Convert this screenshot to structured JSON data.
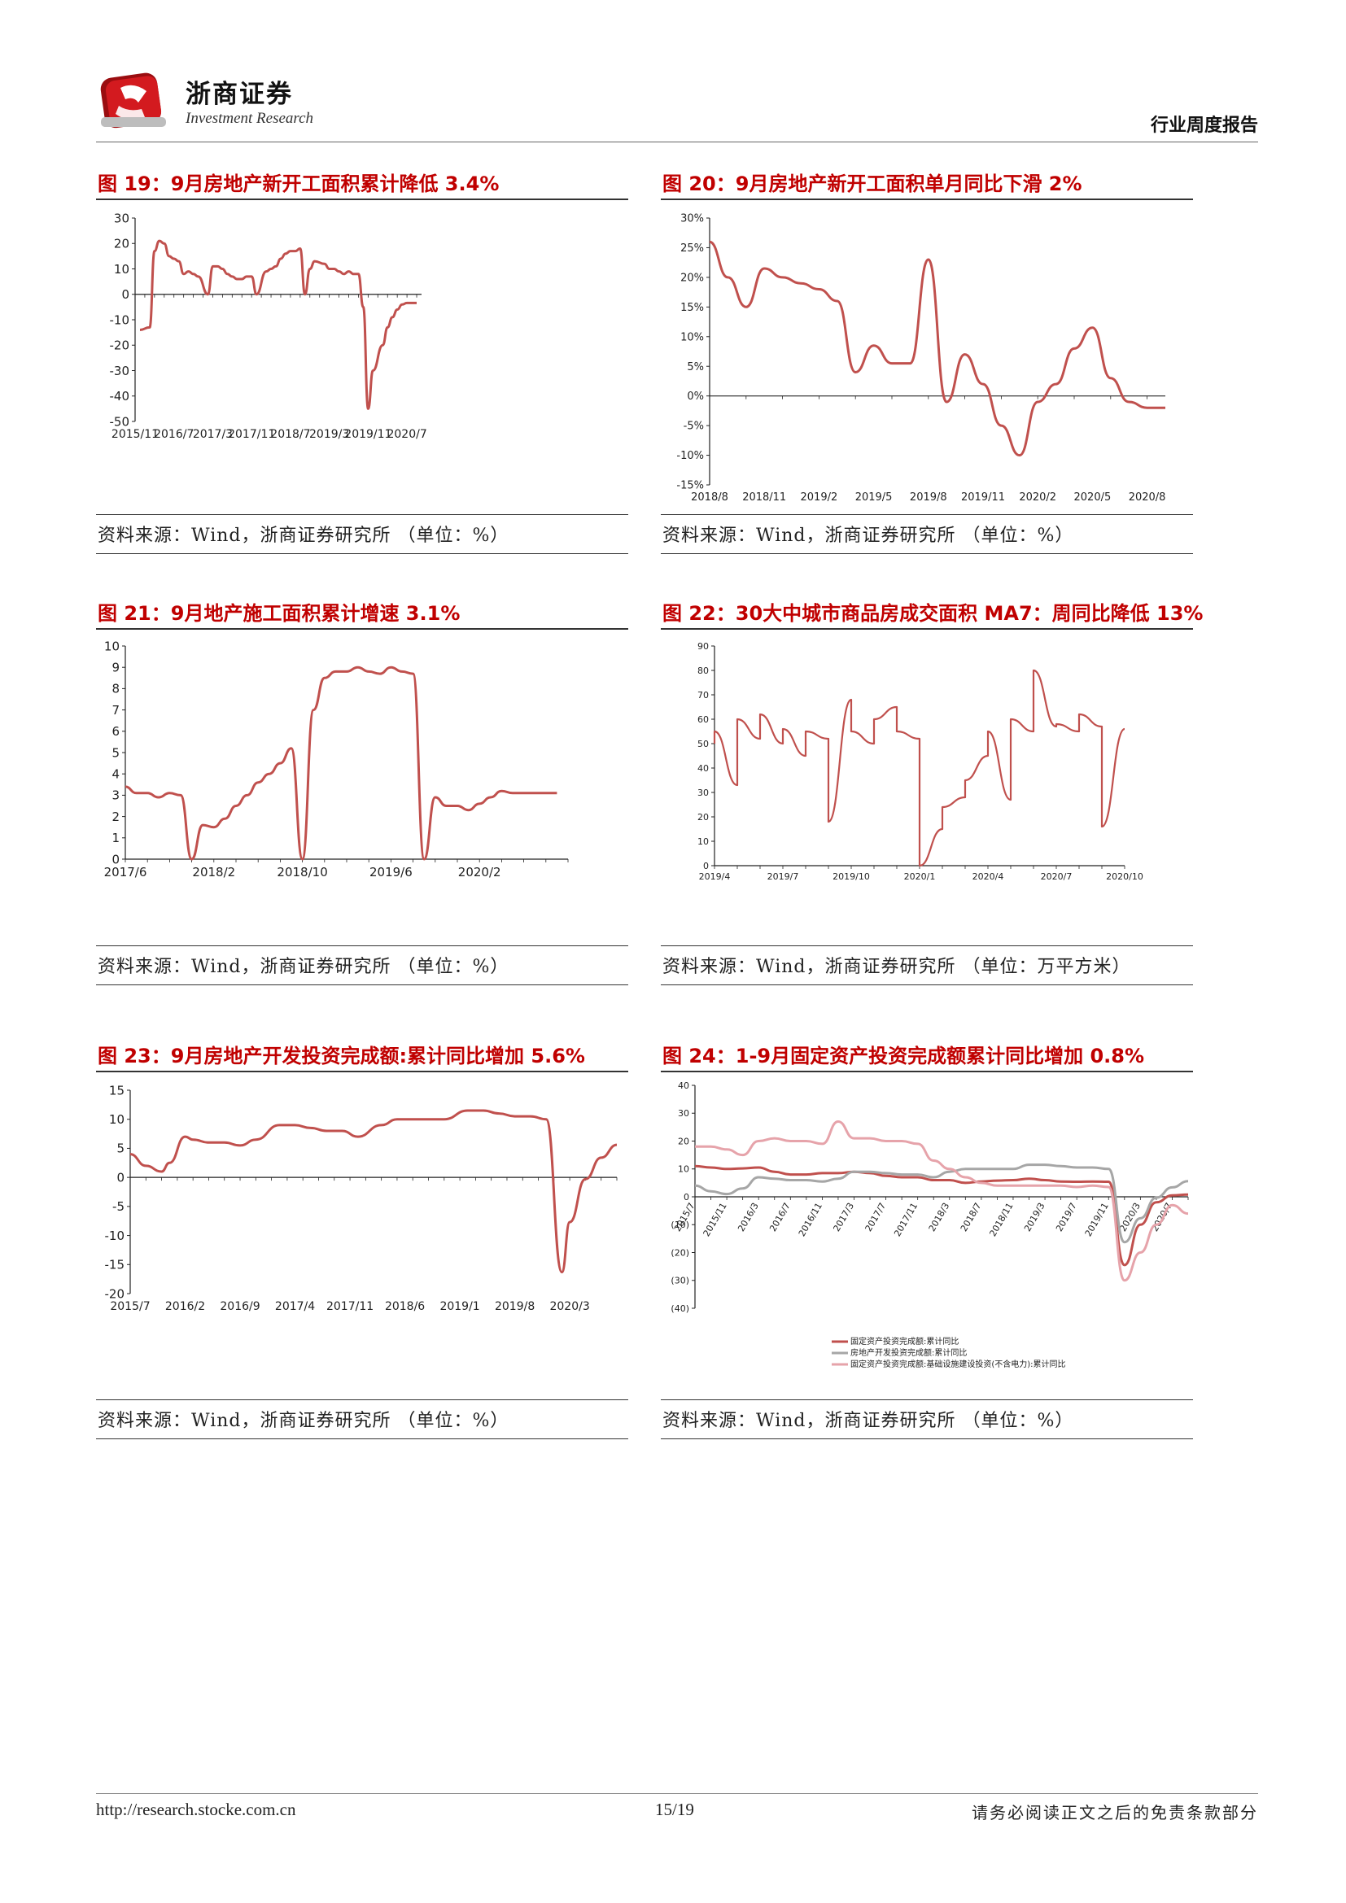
{
  "header": {
    "brand_cn": "浙商证券",
    "brand_en": "Investment Research",
    "report_type": "行业周度报告"
  },
  "footer": {
    "url": "http://research.stocke.com.cn",
    "page": "15/19",
    "disclaimer_note": "请务必阅读正文之后的免责条款部分"
  },
  "colors": {
    "accent": "#c00000",
    "series_main": "#c0504d",
    "series_grey": "#a6a6a6",
    "series_pink": "#e6a3aa",
    "series_dark": "#c0504d"
  },
  "figures": [
    {
      "id": 19,
      "title": "图 19：9月房地产新开工面积累计降低 3.4%",
      "source": "资料来源：Wind，浙商证券研究所 （单位：%）",
      "chart_data": {
        "type": "line",
        "ylim": [
          -50,
          30
        ],
        "yticks": [
          "30",
          "20",
          "10",
          "0",
          "-10",
          "-20",
          "-30",
          "-40",
          "-50"
        ],
        "xtick_labels": [
          "2015/11",
          "2016/7",
          "2017/3",
          "2017/11",
          "2018/7",
          "2019/3",
          "2019/11",
          "2020/7"
        ],
        "x": [
          "2015-12",
          "2016-02",
          "2016-03",
          "2016-04",
          "2016-05",
          "2016-06",
          "2016-07",
          "2016-08",
          "2016-09",
          "2016-10",
          "2016-11",
          "2016-12",
          "2017-02",
          "2017-03",
          "2017-04",
          "2017-05",
          "2017-06",
          "2017-07",
          "2017-08",
          "2017-09",
          "2017-10",
          "2017-11",
          "2017-12",
          "2018-02",
          "2018-03",
          "2018-04",
          "2018-05",
          "2018-06",
          "2018-07",
          "2018-08",
          "2018-09",
          "2018-10",
          "2018-11",
          "2018-12",
          "2019-02",
          "2019-03",
          "2019-04",
          "2019-05",
          "2019-06",
          "2019-07",
          "2019-08",
          "2019-09",
          "2019-10",
          "2019-11",
          "2019-12",
          "2020-02",
          "2020-03",
          "2020-04",
          "2020-05",
          "2020-06",
          "2020-07",
          "2020-08",
          "2020-09"
        ],
        "values": [
          -14,
          -13,
          17,
          21,
          20,
          15,
          14,
          13,
          8,
          9,
          8,
          7,
          0,
          11,
          11,
          10,
          8,
          7,
          6,
          6,
          7,
          7,
          0,
          9,
          10,
          11,
          14,
          16,
          17,
          17,
          18,
          0,
          10,
          13,
          12,
          10,
          10,
          9,
          8,
          9,
          8,
          8,
          -5,
          -45,
          -30,
          -20,
          -13,
          -9,
          -6,
          -4,
          -3.4,
          -3.4,
          -3.4
        ]
      }
    },
    {
      "id": 20,
      "title": "图 20：9月房地产新开工面积单月同比下滑 2%",
      "source": "资料来源：Wind，浙商证券研究所 （单位：%）",
      "chart_data": {
        "type": "line",
        "ylim": [
          -15,
          30
        ],
        "yticks": [
          "30%",
          "25%",
          "20%",
          "15%",
          "10%",
          "5%",
          "0%",
          "-5%",
          "-10%",
          "-15%"
        ],
        "xtick_labels": [
          "2018/8",
          "2018/11",
          "2019/2",
          "2019/5",
          "2019/8",
          "2019/11",
          "2020/2",
          "2020/5",
          "2020/8"
        ],
        "x": [
          "2018-08",
          "2018-09",
          "2018-10",
          "2018-11",
          "2018-12",
          "2019-01",
          "2019-02",
          "2019-03",
          "2019-04",
          "2019-05",
          "2019-06",
          "2019-07",
          "2019-08",
          "2019-09",
          "2019-10",
          "2019-11",
          "2019-12",
          "2020-01",
          "2020-02",
          "2020-03",
          "2020-04",
          "2020-05",
          "2020-06",
          "2020-07",
          "2020-08",
          "2020-09"
        ],
        "values": [
          26,
          20,
          15,
          21.5,
          20,
          19,
          18,
          16,
          4,
          8.5,
          5.5,
          5.5,
          23,
          -1,
          7,
          2,
          -5,
          -10,
          -1,
          2,
          8,
          11.5,
          3,
          -1,
          -2,
          -2
        ]
      }
    },
    {
      "id": 21,
      "title": "图 21：9月地产施工面积累计增速 3.1%",
      "source": "资料来源：Wind，浙商证券研究所 （单位：%）",
      "chart_data": {
        "type": "line",
        "ylim": [
          0,
          10
        ],
        "yticks": [
          "10",
          "9",
          "8",
          "7",
          "6",
          "5",
          "4",
          "3",
          "2",
          "1",
          "0"
        ],
        "xtick_labels": [
          "2017/6",
          "2018/2",
          "2018/10",
          "2019/6",
          "2020/2"
        ],
        "x": [
          "2017-06",
          "2017-07",
          "2017-08",
          "2017-09",
          "2017-10",
          "2017-11",
          "2017-12",
          "2018-01",
          "2018-02",
          "2018-03",
          "2018-04",
          "2018-05",
          "2018-06",
          "2018-07",
          "2018-08",
          "2018-09",
          "2018-10",
          "2018-11",
          "2018-12",
          "2019-01",
          "2019-02",
          "2019-03",
          "2019-04",
          "2019-05",
          "2019-06",
          "2019-07",
          "2019-08",
          "2019-09",
          "2019-10",
          "2019-11",
          "2019-12",
          "2020-01",
          "2020-02",
          "2020-03",
          "2020-04",
          "2020-05",
          "2020-06",
          "2020-07",
          "2020-08",
          "2020-09"
        ],
        "values": [
          3.4,
          3.1,
          3.1,
          2.9,
          3.1,
          3.0,
          0,
          1.6,
          1.5,
          1.9,
          2.5,
          3.0,
          3.6,
          4.0,
          4.5,
          5.2,
          0,
          7.0,
          8.5,
          8.8,
          8.8,
          9.0,
          8.8,
          8.7,
          9.0,
          8.8,
          8.7,
          0,
          2.9,
          2.5,
          2.5,
          2.3,
          2.6,
          2.9,
          3.2,
          3.1,
          3.1,
          3.1,
          3.1,
          3.1
        ]
      }
    },
    {
      "id": 22,
      "title": "图 22：30大中城市商品房成交面积 MA7：周同比降低 13%",
      "source": "资料来源：Wind，浙商证券研究所 （单位：万平方米）",
      "chart_data": {
        "type": "line",
        "ylim": [
          0,
          90
        ],
        "yticks": [
          "90",
          "80",
          "70",
          "60",
          "50",
          "40",
          "30",
          "20",
          "10",
          "0"
        ],
        "xtick_labels": [
          "2019/4",
          "2019/7",
          "2019/10",
          "2020/1",
          "2020/4",
          "2020/7",
          "2020/10"
        ],
        "x": [
          "2019-04",
          "2019-04",
          "2019-05",
          "2019-05",
          "2019-06",
          "2019-06",
          "2019-07",
          "2019-07",
          "2019-08",
          "2019-08",
          "2019-09",
          "2019-09",
          "2019-10",
          "2019-10",
          "2019-11",
          "2019-11",
          "2019-12",
          "2019-12",
          "2020-01",
          "2020-01",
          "2020-02",
          "2020-02",
          "2020-03",
          "2020-03",
          "2020-04",
          "2020-04",
          "2020-05",
          "2020-05",
          "2020-06",
          "2020-06",
          "2020-07",
          "2020-07",
          "2020-08",
          "2020-08",
          "2020-09",
          "2020-09",
          "2020-10"
        ],
        "values": [
          50,
          55,
          33,
          60,
          52,
          62,
          50,
          56,
          45,
          55,
          52,
          18,
          68,
          55,
          50,
          60,
          65,
          55,
          52,
          0,
          15,
          24,
          28,
          35,
          45,
          55,
          27,
          60,
          55,
          80,
          57,
          58,
          55,
          62,
          57,
          16,
          56
        ]
      }
    },
    {
      "id": 23,
      "title": "图 23：9月房地产开发投资完成额:累计同比增加 5.6%",
      "source": "资料来源：Wind，浙商证券研究所 （单位：%）",
      "chart_data": {
        "type": "line",
        "ylim": [
          -20,
          15
        ],
        "yticks": [
          "15",
          "10",
          "5",
          "0",
          "-5",
          "-10",
          "-15",
          "-20"
        ],
        "xtick_labels": [
          "2015/7",
          "2016/2",
          "2016/9",
          "2017/4",
          "2017/11",
          "2018/6",
          "2019/1",
          "2019/8",
          "2020/3"
        ],
        "x": [
          "2015-07",
          "2015-09",
          "2015-11",
          "2015-12",
          "2016-02",
          "2016-03",
          "2016-05",
          "2016-07",
          "2016-09",
          "2016-11",
          "2017-02",
          "2017-04",
          "2017-06",
          "2017-08",
          "2017-10",
          "2017-12",
          "2018-03",
          "2018-05",
          "2018-07",
          "2018-09",
          "2018-11",
          "2019-02",
          "2019-04",
          "2019-06",
          "2019-08",
          "2019-10",
          "2019-12",
          "2020-02",
          "2020-03",
          "2020-05",
          "2020-07",
          "2020-09"
        ],
        "values": [
          4,
          2,
          1,
          2.5,
          7,
          6.5,
          6,
          6,
          5.5,
          6.5,
          9,
          9,
          8.5,
          8,
          8,
          7,
          9,
          10,
          10,
          10,
          10,
          11.5,
          11.5,
          11,
          10.5,
          10.5,
          10,
          -16.3,
          -7.7,
          -0.3,
          3.4,
          5.6
        ]
      }
    },
    {
      "id": 24,
      "title": "图 24：1-9月固定资产投资完成额累计同比增加 0.8%",
      "source": "资料来源：Wind，浙商证券研究所 （单位：%）",
      "chart_data": {
        "type": "line",
        "ylim": [
          -40,
          40
        ],
        "yticks": [
          "40",
          "30",
          "20",
          "10",
          "0",
          "(10)",
          "(20)",
          "(30)",
          "(40)"
        ],
        "xtick_labels": [
          "2015/7",
          "2015/11",
          "2016/3",
          "2016/7",
          "2016/11",
          "2017/3",
          "2017/7",
          "2017/11",
          "2018/3",
          "2018/7",
          "2018/11",
          "2019/3",
          "2019/7",
          "2019/11",
          "2020/3",
          "2020/7"
        ],
        "series": [
          {
            "name": "固定资产投资完成额:累计同比",
            "color": "#c0504d",
            "values": [
              11,
              10.5,
              10,
              10.2,
              10.5,
              9,
              8,
              8,
              8.5,
              8.5,
              9,
              8.5,
              7.5,
              7,
              7,
              6,
              6,
              5,
              5.5,
              5.8,
              6,
              6.5,
              6,
              5.5,
              5.4,
              5.5,
              5.4,
              -24.5,
              -10,
              -2,
              0.5,
              0.8
            ]
          },
          {
            "name": "房地产开发投资完成额:累计同比",
            "color": "#a6a6a6",
            "values": [
              4,
              2,
              1,
              3,
              7,
              6.5,
              6,
              6,
              5.5,
              6.5,
              9,
              9,
              8.5,
              8,
              8,
              7,
              9,
              10,
              10,
              10,
              10,
              11.5,
              11.5,
              11,
              10.5,
              10.5,
              10,
              -16.3,
              -7.7,
              -0.3,
              3.4,
              5.6
            ]
          },
          {
            "name": "固定资产投资完成额:基础设施建设投资(不含电力):累计同比",
            "color": "#e6a3aa",
            "values": [
              18,
              18,
              17,
              15,
              20,
              21,
              20,
              20,
              19,
              27,
              21,
              21,
              20,
              20,
              19,
              13,
              10,
              7,
              5,
              4,
              4,
              4,
              4,
              4,
              3.5,
              4,
              3.5,
              -30,
              -20,
              -10,
              -3,
              -6
            ]
          }
        ],
        "legend_position": "bottom"
      }
    }
  ]
}
